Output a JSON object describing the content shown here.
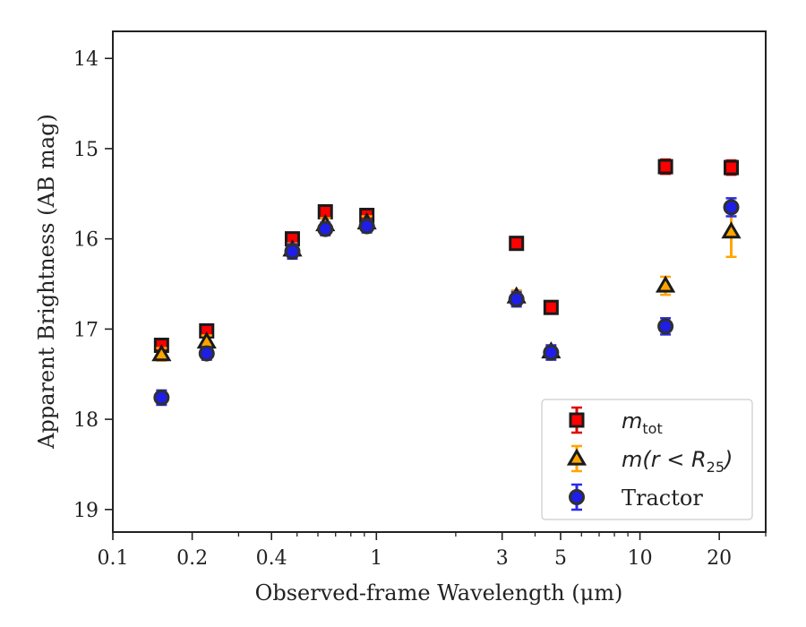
{
  "chart_data": {
    "type": "scatter",
    "xlabel": "Observed-frame Wavelength (μm)",
    "ylabel": "Apparent Brightness (AB mag)",
    "x_scale": "log",
    "xlim": [
      0.1,
      30
    ],
    "ylim": [
      19.25,
      13.7
    ],
    "y_inverted": true,
    "x_ticks": [
      0.1,
      0.2,
      0.4,
      1,
      3,
      5,
      10,
      20
    ],
    "x_tick_labels": [
      "0.1",
      "0.2",
      "0.4",
      "1",
      "3",
      "5",
      "10",
      "20"
    ],
    "y_ticks": [
      14,
      15,
      16,
      17,
      18,
      19
    ],
    "y_tick_labels": [
      "14",
      "15",
      "16",
      "17",
      "18",
      "19"
    ],
    "grid": false,
    "legend_position": "lower right",
    "series": [
      {
        "name": "m_tot",
        "marker": "square",
        "color": "#ff0000",
        "edge_color": "#1a1a1a",
        "err_color": "#e00000",
        "points": [
          {
            "x": 0.153,
            "y": 17.18,
            "err": 0.04
          },
          {
            "x": 0.227,
            "y": 17.02,
            "err": 0.04
          },
          {
            "x": 0.48,
            "y": 16.0,
            "err": 0.06
          },
          {
            "x": 0.64,
            "y": 15.7,
            "err": 0.05
          },
          {
            "x": 0.92,
            "y": 15.74,
            "err": 0.05
          },
          {
            "x": 3.4,
            "y": 16.05,
            "err": 0.06
          },
          {
            "x": 4.6,
            "y": 16.76,
            "err": 0.06
          },
          {
            "x": 12.5,
            "y": 15.2,
            "err": 0.08
          },
          {
            "x": 22.2,
            "y": 15.21,
            "err": 0.08
          }
        ]
      },
      {
        "name": "m(r < R25)",
        "marker": "triangle",
        "color": "#ffa500",
        "edge_color": "#1a1a1a",
        "err_color": "#ffa500",
        "points": [
          {
            "x": 0.153,
            "y": 17.28,
            "err": 0.03
          },
          {
            "x": 0.227,
            "y": 17.14,
            "err": 0.03
          },
          {
            "x": 0.48,
            "y": 16.12,
            "err": 0.04
          },
          {
            "x": 0.64,
            "y": 15.84,
            "err": 0.04
          },
          {
            "x": 0.92,
            "y": 15.82,
            "err": 0.04
          },
          {
            "x": 3.4,
            "y": 16.64,
            "err": 0.06
          },
          {
            "x": 4.6,
            "y": 17.25,
            "err": 0.06
          },
          {
            "x": 12.5,
            "y": 16.52,
            "err": 0.1
          },
          {
            "x": 22.2,
            "y": 15.92,
            "err": 0.28
          }
        ]
      },
      {
        "name": "Tractor",
        "marker": "circle",
        "color": "#1e1ee6",
        "edge_color": "#303030",
        "err_color": "#2a2aee",
        "points": [
          {
            "x": 0.153,
            "y": 17.76,
            "err": 0.08
          },
          {
            "x": 0.227,
            "y": 17.27,
            "err": 0.07
          },
          {
            "x": 0.48,
            "y": 16.14,
            "err": 0.08
          },
          {
            "x": 0.64,
            "y": 15.89,
            "err": 0.07
          },
          {
            "x": 0.92,
            "y": 15.86,
            "err": 0.07
          },
          {
            "x": 3.4,
            "y": 16.67,
            "err": 0.08
          },
          {
            "x": 4.6,
            "y": 17.26,
            "err": 0.08
          },
          {
            "x": 12.5,
            "y": 16.97,
            "err": 0.09
          },
          {
            "x": 22.2,
            "y": 15.65,
            "err": 0.1
          }
        ]
      }
    ],
    "legend": {
      "entries": [
        {
          "series": 0,
          "label_base": "m",
          "label_sub": "tot"
        },
        {
          "series": 1,
          "label_base": "m(r < R",
          "label_sub": "25",
          "label_tail": ")"
        },
        {
          "series": 2,
          "label_base": "Tractor"
        }
      ]
    }
  }
}
